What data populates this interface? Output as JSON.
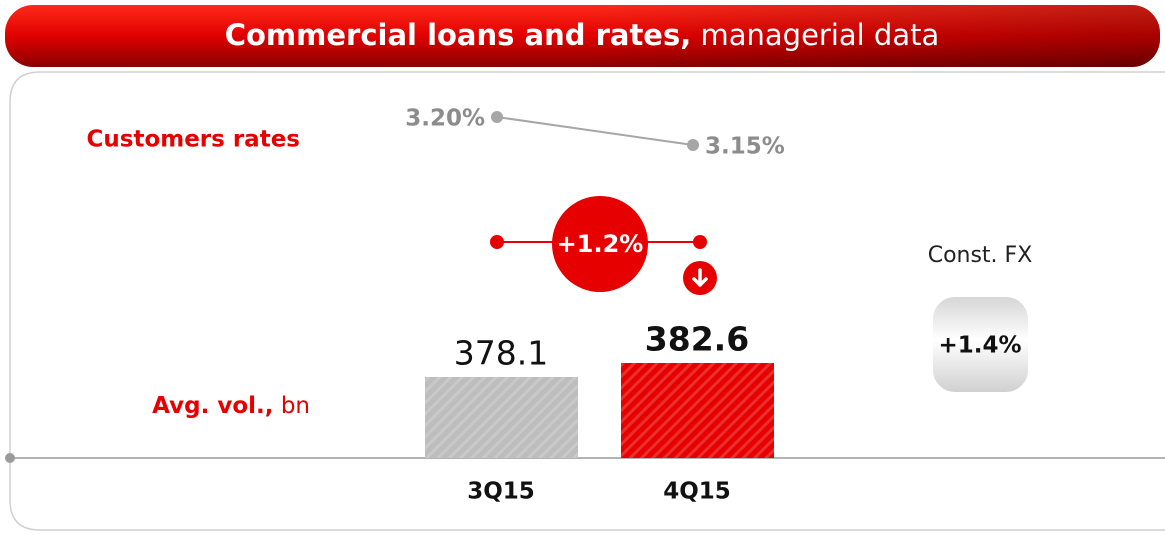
{
  "header": {
    "title": "Commercial loans and rates,",
    "subtitle": "managerial data"
  },
  "chart_data": [
    {
      "type": "bar",
      "label": "Avg. vol.,",
      "unit": "bn",
      "categories": [
        "3Q15",
        "4Q15"
      ],
      "values": [
        378.1,
        382.6
      ],
      "colors": [
        "#bdbdbd",
        "#e60000"
      ],
      "ylim": [
        352,
        400
      ]
    },
    {
      "type": "line",
      "label": "Customers rates",
      "values": [
        3.2,
        3.15
      ],
      "value_labels": [
        "3.20%",
        "3.15%"
      ],
      "color": "#a6a6a6",
      "ylim": [
        3.1,
        3.25
      ]
    }
  ],
  "change": "+1.2%",
  "const_fx": {
    "label": "Const. FX",
    "value": "+1.4%"
  }
}
